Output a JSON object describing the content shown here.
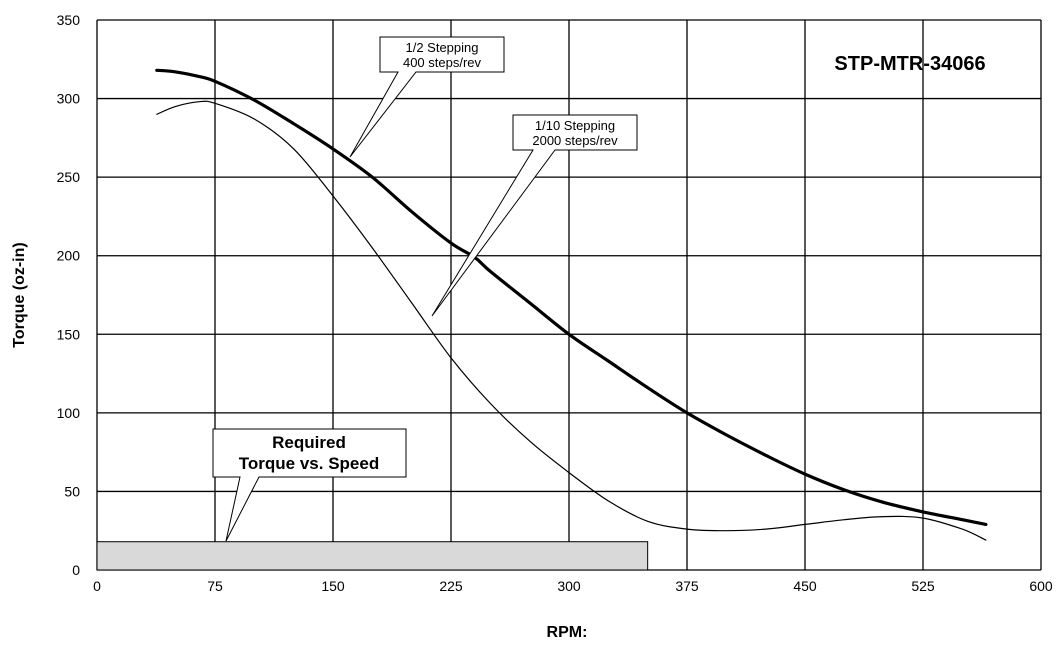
{
  "chart_data": {
    "type": "line",
    "title": "STP-MTR-34066",
    "xlabel": "RPM:",
    "ylabel": "Torque (oz-in)",
    "xlim": [
      0,
      600
    ],
    "ylim": [
      0,
      350
    ],
    "x_ticks": [
      "0",
      "75",
      "150",
      "225",
      "300",
      "375",
      "450",
      "525",
      "600"
    ],
    "y_ticks": [
      "0",
      "50",
      "100",
      "150",
      "200",
      "250",
      "300",
      "350"
    ],
    "grid": true,
    "series": [
      {
        "name": "1/2 Stepping 400 steps/rev",
        "line": "thick",
        "points": [
          [
            38,
            318
          ],
          [
            50,
            317
          ],
          [
            65,
            314
          ],
          [
            75,
            311
          ],
          [
            100,
            299
          ],
          [
            125,
            284
          ],
          [
            150,
            268
          ],
          [
            175,
            250
          ],
          [
            200,
            228
          ],
          [
            225,
            208
          ],
          [
            240,
            199
          ],
          [
            250,
            190
          ],
          [
            275,
            170
          ],
          [
            300,
            150
          ],
          [
            325,
            133
          ],
          [
            350,
            116
          ],
          [
            375,
            100
          ],
          [
            400,
            86
          ],
          [
            425,
            73
          ],
          [
            450,
            61
          ],
          [
            475,
            51
          ],
          [
            500,
            43
          ],
          [
            525,
            37
          ],
          [
            550,
            32
          ],
          [
            565,
            29
          ]
        ]
      },
      {
        "name": "1/10 Stepping 2000 steps/rev",
        "line": "thin",
        "points": [
          [
            38,
            290
          ],
          [
            50,
            295
          ],
          [
            65,
            298
          ],
          [
            75,
            297
          ],
          [
            100,
            287
          ],
          [
            125,
            268
          ],
          [
            150,
            238
          ],
          [
            175,
            205
          ],
          [
            200,
            170
          ],
          [
            225,
            135
          ],
          [
            250,
            106
          ],
          [
            275,
            82
          ],
          [
            300,
            62
          ],
          [
            325,
            44
          ],
          [
            350,
            31
          ],
          [
            375,
            26
          ],
          [
            400,
            25
          ],
          [
            425,
            26
          ],
          [
            450,
            29
          ],
          [
            475,
            32
          ],
          [
            500,
            34
          ],
          [
            525,
            33
          ],
          [
            550,
            26
          ],
          [
            565,
            19
          ]
        ]
      }
    ],
    "required_region": {
      "label_line1": "Required",
      "label_line2": "Torque vs. Speed",
      "x": [
        0,
        350
      ],
      "y": [
        0,
        18
      ]
    },
    "annotations": {
      "half_line1": "1/2 Stepping",
      "half_line2": "400 steps/rev",
      "tenth_line1": "1/10 Stepping",
      "tenth_line2": "2000 steps/rev"
    }
  }
}
